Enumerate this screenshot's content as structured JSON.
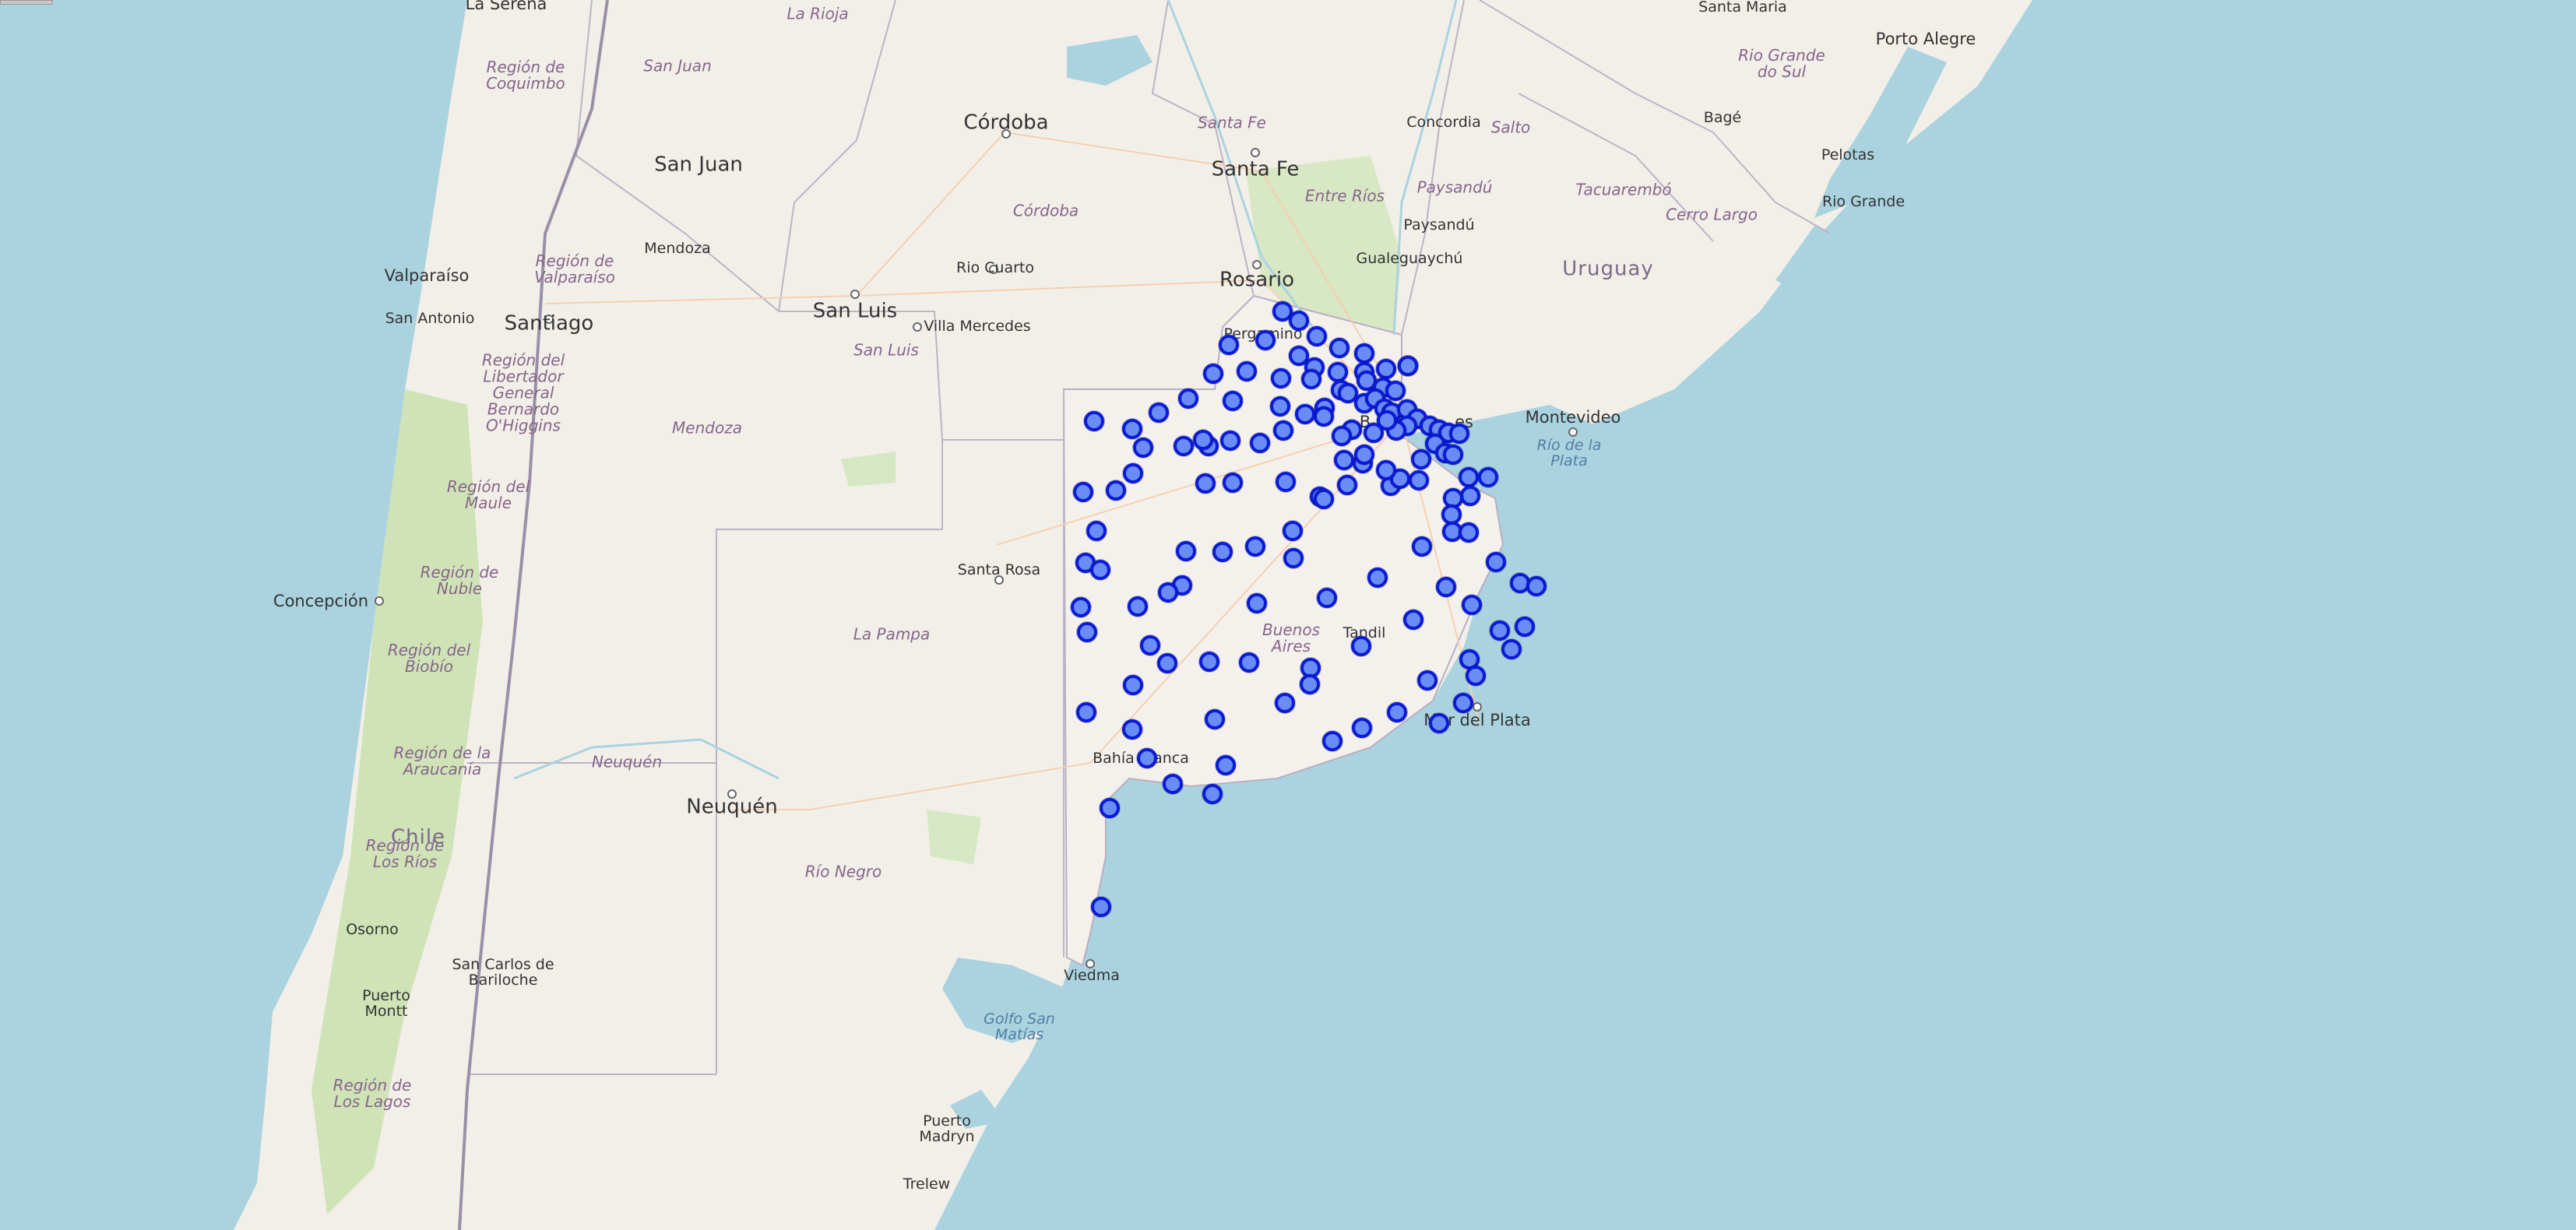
{
  "map": {
    "cities": [
      {
        "name": "La Serena"
      },
      {
        "name": "Córdoba"
      },
      {
        "name": "San Juan"
      },
      {
        "name": "Santa Fe"
      },
      {
        "name": "Concordia"
      },
      {
        "name": "Porto Alegre"
      },
      {
        "name": "Santa Maria"
      },
      {
        "name": "Bagé"
      },
      {
        "name": "Pelotas"
      },
      {
        "name": "Rio Grande"
      },
      {
        "name": "Mendoza"
      },
      {
        "name": "Valparaíso"
      },
      {
        "name": "Santiago"
      },
      {
        "name": "San Antonio"
      },
      {
        "name": "Rio Cuarto"
      },
      {
        "name": "San Luis"
      },
      {
        "name": "Villa Mercedes"
      },
      {
        "name": "Rosario"
      },
      {
        "name": "Pergamino"
      },
      {
        "name": "Gualeguaychú"
      },
      {
        "name": "Paysandú"
      },
      {
        "name": "Montevideo"
      },
      {
        "name": "Santa Rosa"
      },
      {
        "name": "Concepción"
      },
      {
        "name": "Tandil"
      },
      {
        "name": "Mar del Plata"
      },
      {
        "name": "Bahía Blanca"
      },
      {
        "name": "Neuquén"
      },
      {
        "name": "Osorno"
      },
      {
        "name": "San Carlos de Bariloche"
      },
      {
        "name": "Puerto Montt"
      },
      {
        "name": "Viedma"
      },
      {
        "name": "Puerto Madryn"
      },
      {
        "name": "Trelew"
      }
    ],
    "regions": [
      {
        "name": "La Rioja"
      },
      {
        "name": "San Juan"
      },
      {
        "name": "Región de Coquimbo"
      },
      {
        "name": "Santa Fe"
      },
      {
        "name": "Córdoba"
      },
      {
        "name": "Entre Ríos"
      },
      {
        "name": "Salto"
      },
      {
        "name": "Paysandú"
      },
      {
        "name": "Tacuarembó"
      },
      {
        "name": "Cerro Largo"
      },
      {
        "name": "Rio Grande do Sul"
      },
      {
        "name": "Región de Valparaíso"
      },
      {
        "name": "Región del Libertador General Bernardo O'Higgins"
      },
      {
        "name": "San Luis"
      },
      {
        "name": "Mendoza"
      },
      {
        "name": "Región del Maule"
      },
      {
        "name": "Región de Ñuble"
      },
      {
        "name": "Región del Biobío"
      },
      {
        "name": "Región de la Araucanía"
      },
      {
        "name": "Región de Los Ríos"
      },
      {
        "name": "Región de Los Lagos"
      },
      {
        "name": "La Pampa"
      },
      {
        "name": "Buenos Aires"
      },
      {
        "name": "Neuquén"
      },
      {
        "name": "Río Negro"
      }
    ],
    "countries": [
      {
        "name": "Uruguay"
      },
      {
        "name": "Chile"
      }
    ],
    "water": [
      {
        "name": "Río de la Plata"
      },
      {
        "name": "Golfo San Matías"
      }
    ],
    "partial_labels": {
      "buenos_aires_fragment_left": "B",
      "buenos_aires_fragment_right": "es"
    },
    "marker_color": "#0a1bd8",
    "marker_fill": "#6a8cf5",
    "marker_count": 128
  }
}
